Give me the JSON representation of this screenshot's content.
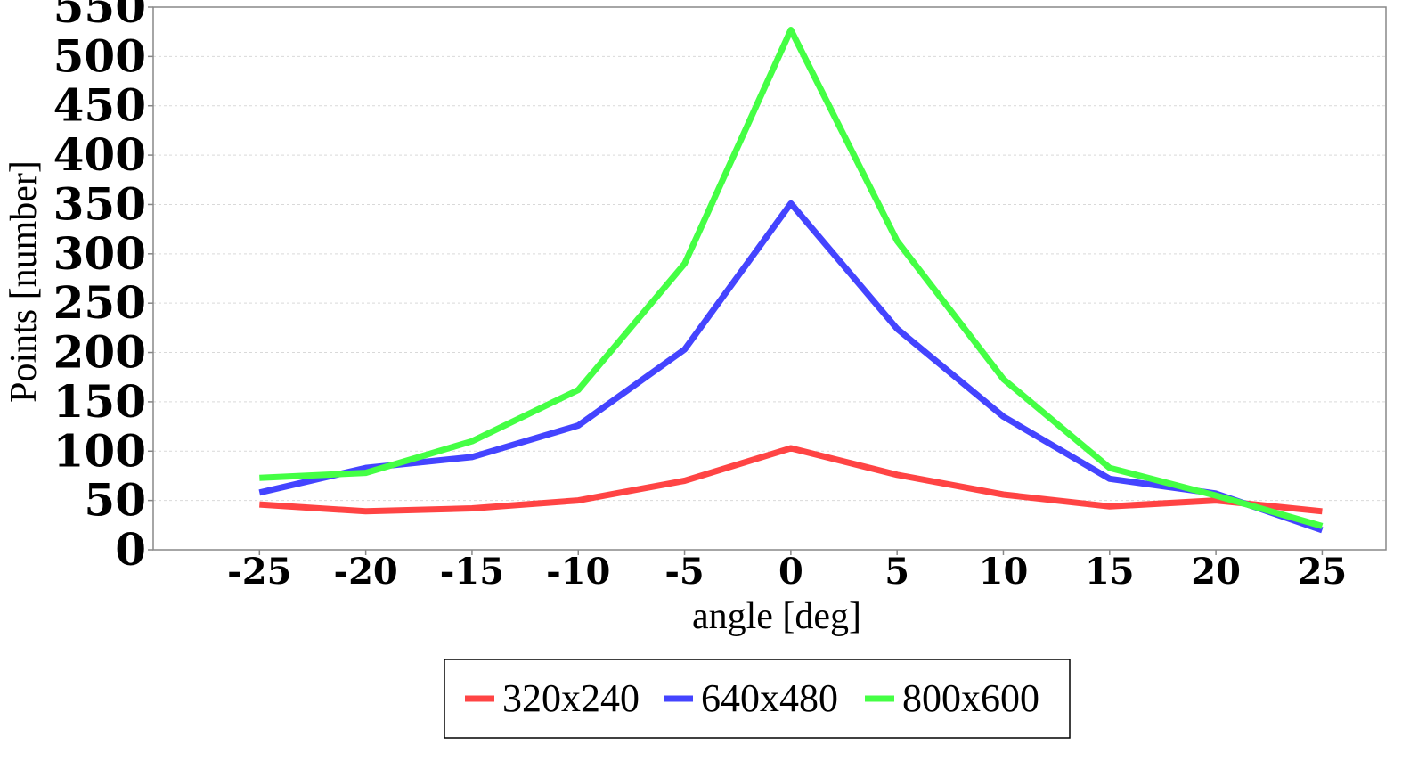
{
  "chart_data": {
    "type": "line",
    "title": "",
    "xlabel": "angle [deg]",
    "ylabel": "Points [number]",
    "x": [
      -25,
      -20,
      -15,
      -10,
      -5,
      0,
      5,
      10,
      15,
      20,
      25
    ],
    "x_ticks": [
      "-25",
      "-20",
      "-15",
      "-10",
      "-5",
      "0",
      "5",
      "10",
      "15",
      "20",
      "25"
    ],
    "y_ticks": [
      "0",
      "50",
      "100",
      "150",
      "200",
      "250",
      "300",
      "350",
      "400",
      "450",
      "500",
      "550"
    ],
    "xlim": [
      -30,
      28
    ],
    "ylim": [
      0,
      550
    ],
    "grid": true,
    "legend_position": "bottom-center",
    "series": [
      {
        "name": "320x240",
        "color": "#ff4444",
        "values": [
          46,
          39,
          42,
          50,
          70,
          103,
          76,
          56,
          44,
          50,
          39
        ]
      },
      {
        "name": "640x480",
        "color": "#4444ff",
        "values": [
          58,
          83,
          94,
          126,
          203,
          351,
          224,
          135,
          72,
          57,
          20
        ]
      },
      {
        "name": "800x600",
        "color": "#44ff44",
        "values": [
          73,
          78,
          110,
          162,
          290,
          527,
          313,
          173,
          83,
          55,
          24
        ]
      }
    ]
  }
}
